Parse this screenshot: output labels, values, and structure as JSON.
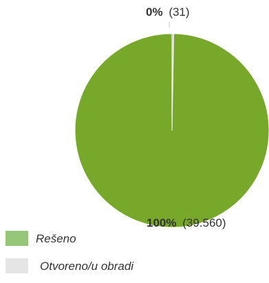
{
  "chart_data": {
    "type": "pie",
    "series": [
      {
        "name": "Rešeno",
        "percent_label": "100%",
        "value": 39560,
        "value_label": "(39.560)",
        "color": "#77a82a"
      },
      {
        "name": "Otvoreno/u obradi",
        "percent_label": "0%",
        "value": 31,
        "value_label": "(31)",
        "color": "#c9c9c9"
      }
    ],
    "legend": {
      "position": "bottom-left",
      "items": [
        {
          "label": "Rešeno",
          "color": "#95c67a"
        },
        {
          "label": "Otvoreno/u obradi",
          "color": "#e5e5e5"
        }
      ]
    }
  }
}
